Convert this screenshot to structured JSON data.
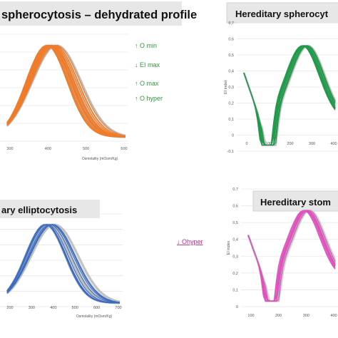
{
  "chart_data": [
    {
      "type": "line",
      "title": "spherocytosis – dehydrated profile",
      "xlabel": "Osmolality (mOsm/Kg)",
      "ylabel": "",
      "x_ticks": [
        "300",
        "400",
        "500",
        "600"
      ],
      "y_ticks": [],
      "xlim": [
        200,
        620
      ],
      "ylim": [
        0,
        0.7
      ],
      "grid": true,
      "color": "#f07c2a",
      "reference_color": "#b7b7b7",
      "annotations": [
        {
          "text": "↑ O min",
          "color": "#2e9a3a"
        },
        {
          "text": "↓ EI max",
          "color": "#2e9a3a"
        },
        {
          "text": "↑ O max",
          "color": "#2e9a3a"
        },
        {
          "text": "↑ O hyper",
          "color": "#2e9a3a"
        }
      ]
    },
    {
      "type": "line",
      "title": "Hereditary spherocyt",
      "xlabel": "",
      "ylabel": "EI index",
      "x_ticks": [
        "0",
        "100",
        "200",
        "300",
        "400"
      ],
      "y_ticks": [
        "-0,1",
        "0",
        "0,1",
        "0,2",
        "0,3",
        "0,4",
        "0,5",
        "0,6",
        "0,7"
      ],
      "xlim": [
        0,
        480
      ],
      "ylim": [
        -0.1,
        0.7
      ],
      "grid": true,
      "color": "#1f9a4a",
      "reference_color": "#b7b7b7"
    },
    {
      "type": "line",
      "title": "ary elliptocytosis",
      "xlabel": "Osmolality (mOsm/Kg)",
      "ylabel": "",
      "x_ticks": [
        "200",
        "300",
        "400",
        "500",
        "600",
        "700"
      ],
      "y_ticks": [],
      "xlim": [
        150,
        700
      ],
      "ylim": [
        0,
        0.7
      ],
      "grid": true,
      "color": "#3a6cc4",
      "reference_color": "#b7b7b7",
      "side_note": {
        "text": "↓ Ohyper",
        "color": "#b0308a"
      }
    },
    {
      "type": "line",
      "title": "Hereditary stom",
      "xlabel": "",
      "ylabel": "EI index",
      "x_ticks": [
        "100",
        "200",
        "300",
        "400"
      ],
      "y_ticks": [
        "0",
        "0,1",
        "0,2",
        "0,3",
        "0,4",
        "0,5",
        "0,6",
        "0,7"
      ],
      "xlim": [
        60,
        460
      ],
      "ylim": [
        0,
        0.7
      ],
      "grid": true,
      "color": "#e24fbf",
      "reference_color": "#b7b7b7"
    }
  ]
}
